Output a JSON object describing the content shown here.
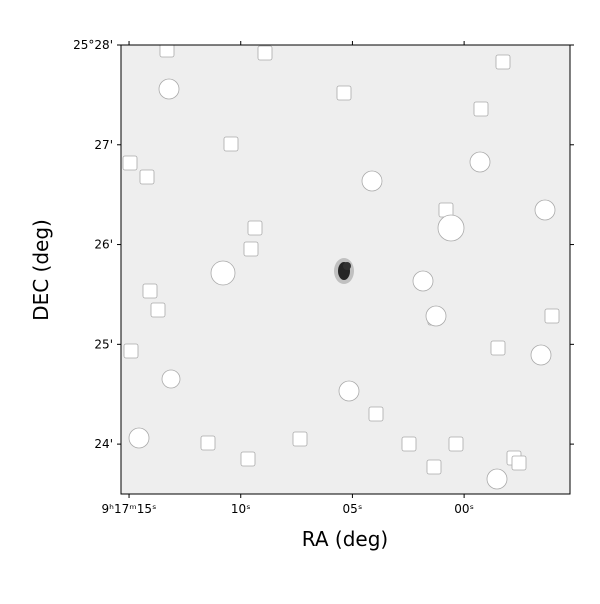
{
  "chart_data": {
    "type": "image",
    "x_label": "RA (deg)",
    "y_label": "DEC (deg)",
    "xlim": [
      15.36,
      -4.74
    ],
    "xticks": [
      {
        "value": 15,
        "label": "9ʰ17ᵐ15ˢ"
      },
      {
        "value": 10,
        "label": "10ˢ"
      },
      {
        "value": 5,
        "label": "05ˢ"
      },
      {
        "value": 0,
        "label": "00ˢ"
      }
    ],
    "ylim": [
      23.5,
      28.0
    ],
    "yticks": [
      {
        "value": 28,
        "label": "25°28'"
      },
      {
        "value": 27,
        "label": "27'"
      },
      {
        "value": 26,
        "label": "26'"
      },
      {
        "value": 25,
        "label": "25'"
      },
      {
        "value": 24,
        "label": "24'"
      }
    ],
    "grid": false
  }
}
